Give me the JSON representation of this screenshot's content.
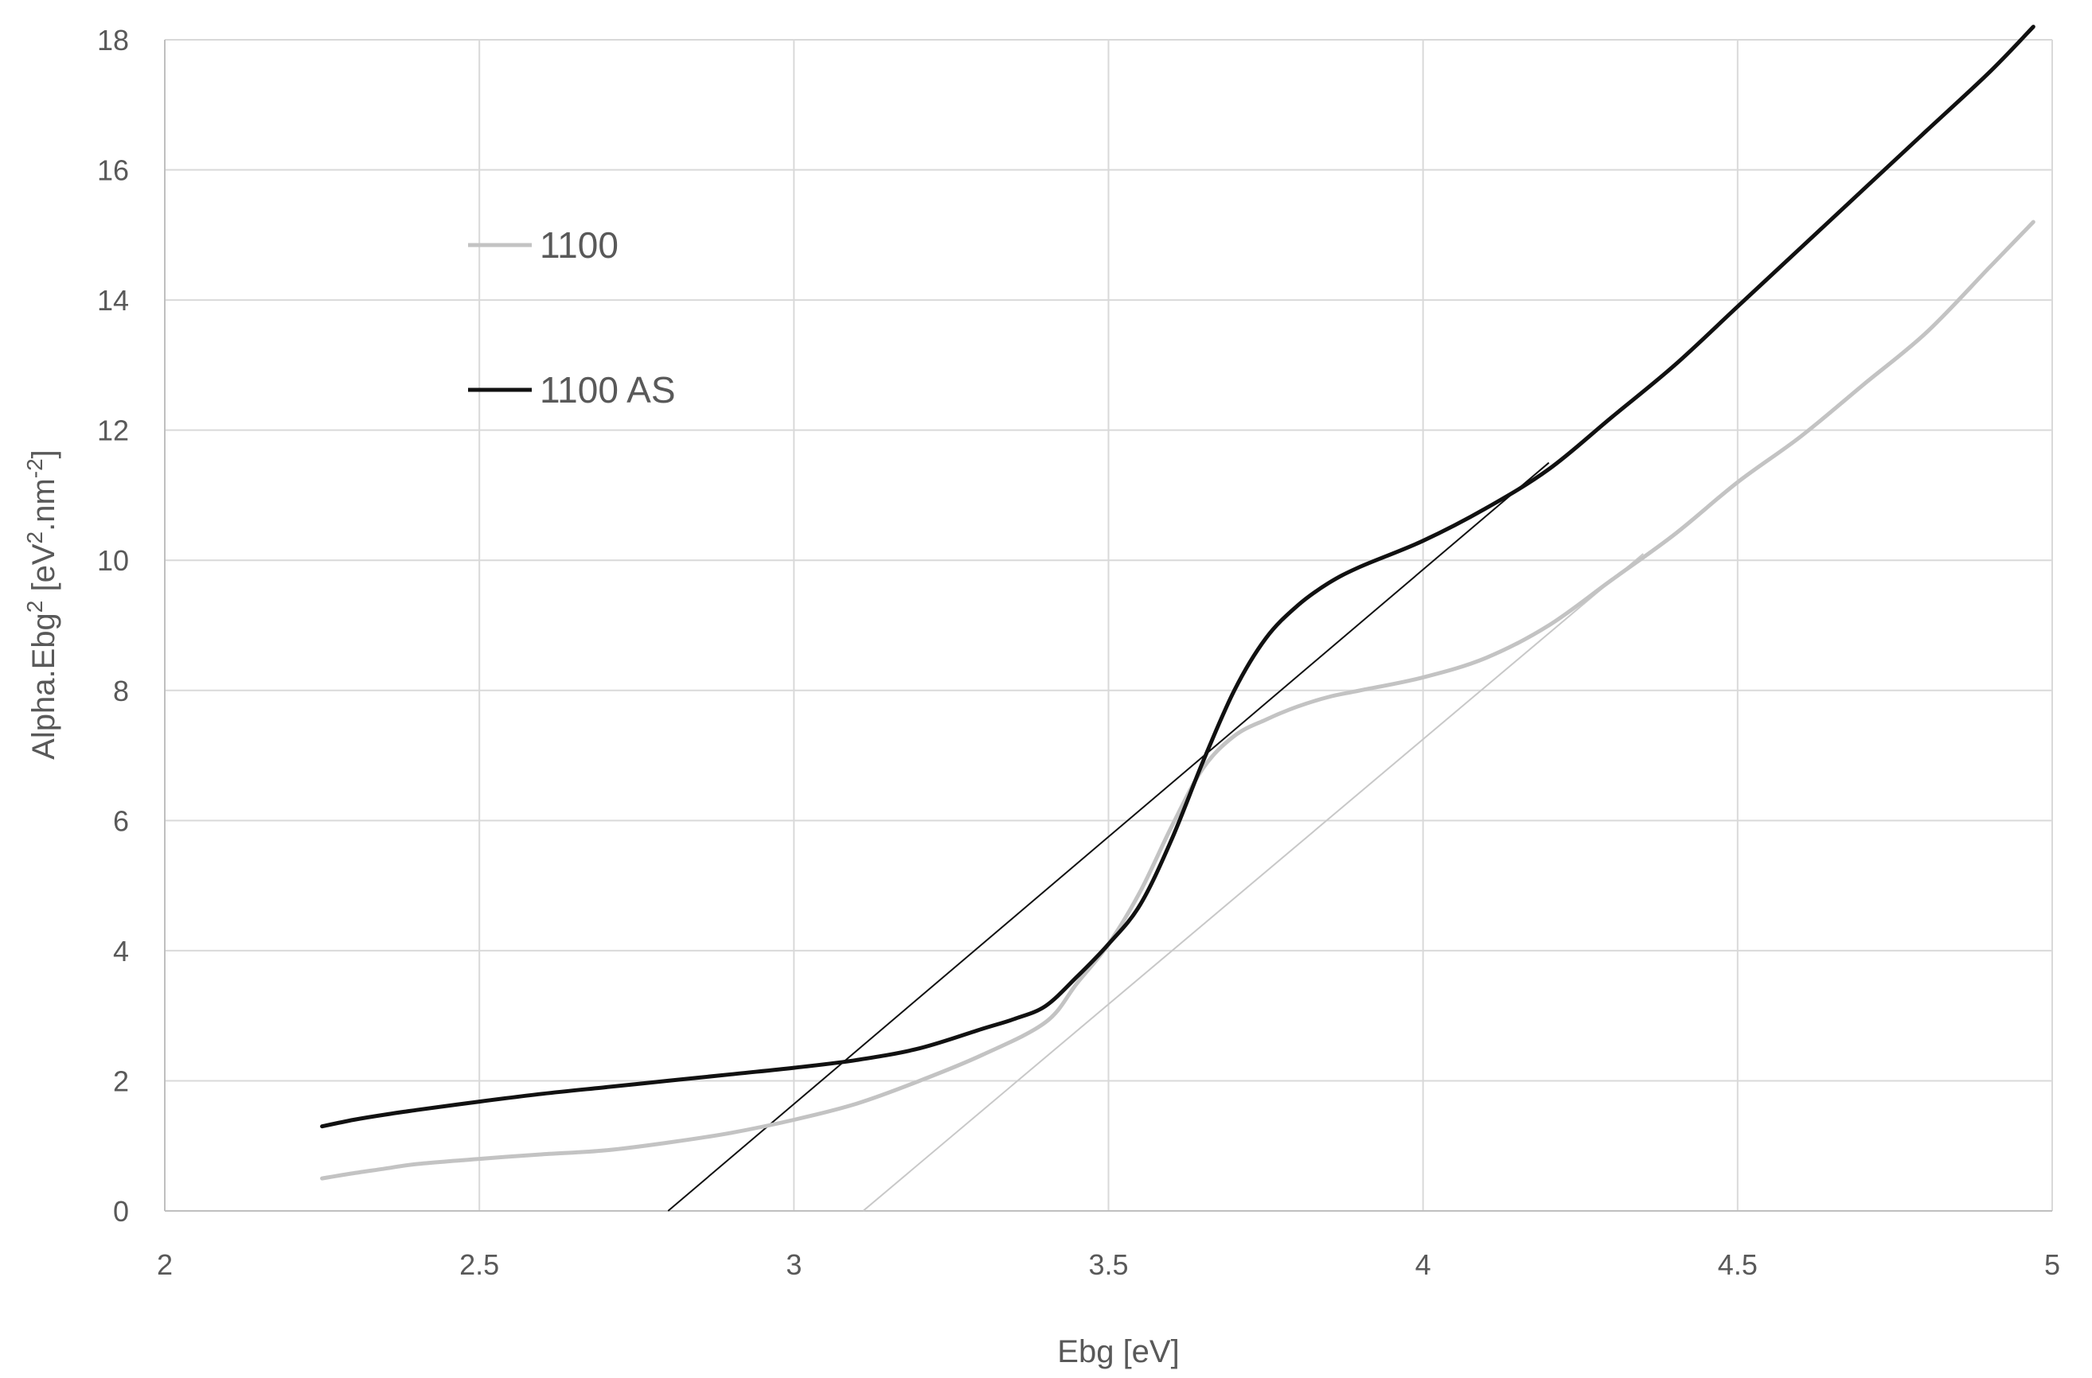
{
  "chart_data": {
    "type": "line",
    "xlabel": "Ebg [eV]",
    "ylabel": {
      "base": "Alpha.Ebg",
      "base_sup": "2",
      "unit_open": " [eV",
      "unit_sup": "2",
      "unit_mid": ".nm",
      "unit_sup2": "-2",
      "unit_close": "]"
    },
    "xlim": [
      2,
      5
    ],
    "ylim": [
      0,
      18
    ],
    "x_ticks": [
      "2",
      "2.5",
      "3",
      "3.5",
      "4",
      "4.5",
      "5"
    ],
    "y_ticks": [
      "0",
      "2",
      "4",
      "6",
      "8",
      "10",
      "12",
      "14",
      "16",
      "18"
    ],
    "grid": true,
    "legend_position": "upper-left",
    "colors": {
      "1100": "#c3c3c3",
      "1100 AS": "#111111",
      "grid": "#d9d9d9",
      "axis": "#bfbfbf"
    },
    "series": [
      {
        "name": "1100",
        "x": [
          2.25,
          2.3,
          2.35,
          2.4,
          2.5,
          2.6,
          2.7,
          2.8,
          2.9,
          3.0,
          3.1,
          3.2,
          3.3,
          3.4,
          3.45,
          3.5,
          3.55,
          3.6,
          3.65,
          3.7,
          3.75,
          3.8,
          3.85,
          3.9,
          4.0,
          4.1,
          4.2,
          4.3,
          4.4,
          4.5,
          4.6,
          4.7,
          4.8,
          4.9,
          4.97
        ],
        "y": [
          0.5,
          0.58,
          0.65,
          0.72,
          0.8,
          0.87,
          0.93,
          1.05,
          1.2,
          1.4,
          1.65,
          2.0,
          2.4,
          2.9,
          3.5,
          4.1,
          4.9,
          5.9,
          6.8,
          7.3,
          7.55,
          7.75,
          7.9,
          8.0,
          8.2,
          8.5,
          9.0,
          9.7,
          10.4,
          11.2,
          11.9,
          12.7,
          13.5,
          14.5,
          15.2
        ]
      },
      {
        "name": "1100 AS",
        "x": [
          2.25,
          2.3,
          2.35,
          2.4,
          2.5,
          2.6,
          2.7,
          2.8,
          2.9,
          3.0,
          3.1,
          3.2,
          3.3,
          3.35,
          3.4,
          3.45,
          3.5,
          3.55,
          3.6,
          3.65,
          3.7,
          3.75,
          3.8,
          3.85,
          3.9,
          4.0,
          4.1,
          4.2,
          4.3,
          4.4,
          4.5,
          4.6,
          4.7,
          4.8,
          4.9,
          4.97
        ],
        "y": [
          1.3,
          1.4,
          1.48,
          1.55,
          1.68,
          1.8,
          1.9,
          2.0,
          2.1,
          2.2,
          2.32,
          2.5,
          2.8,
          2.95,
          3.15,
          3.6,
          4.1,
          4.7,
          5.7,
          6.9,
          8.0,
          8.8,
          9.3,
          9.65,
          9.9,
          10.3,
          10.8,
          11.4,
          12.2,
          13.0,
          13.9,
          14.8,
          15.7,
          16.6,
          17.5,
          18.2
        ]
      }
    ],
    "tangent_lines": [
      {
        "x": [
          2.8,
          4.2
        ],
        "y": [
          0,
          11.5
        ],
        "color": "#111111"
      },
      {
        "x": [
          3.11,
          4.35
        ],
        "y": [
          0,
          10.1
        ],
        "color": "#c8c8c8"
      }
    ],
    "legend": [
      {
        "label": "1100",
        "color": "#c3c3c3"
      },
      {
        "label": "1100 AS",
        "color": "#111111"
      }
    ]
  }
}
